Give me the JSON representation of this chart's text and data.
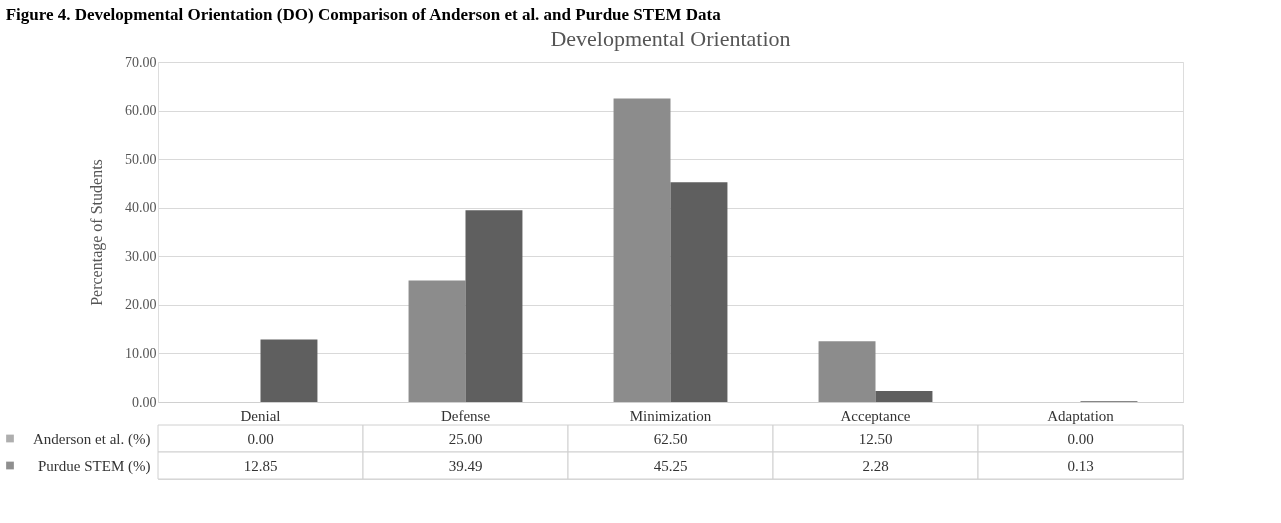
{
  "chart_data": {
    "type": "bar",
    "title": "Developmental Orientation",
    "ylabel": "Percentage of Students",
    "annotations": [
      "Figure 4. Developmental Orientation (DO) Comparison of Anderson et al. and Purdue STEM Data"
    ],
    "categories": [
      "Denial",
      "Defense",
      "Minimization",
      "Acceptance",
      "Adaptation"
    ],
    "series": [
      {
        "name": "Anderson et al. (%)",
        "color": "#8c8c8c",
        "values": [
          0.0,
          25.0,
          62.5,
          12.5,
          0.0
        ],
        "value_labels": [
          "0.00",
          "25.00",
          "62.50",
          "12.50",
          "0.00"
        ]
      },
      {
        "name": "Purdue STEM (%)",
        "color": "#5f5f5f",
        "values": [
          12.85,
          39.49,
          45.25,
          2.28,
          0.13
        ],
        "value_labels": [
          "12.85",
          "39.49",
          "45.25",
          "2.28",
          "0.13"
        ]
      }
    ],
    "ylim": [
      0,
      70
    ],
    "yticks": [
      {
        "value": 0,
        "label": "0.00"
      },
      {
        "value": 10,
        "label": "10.00"
      },
      {
        "value": 20,
        "label": "20.00"
      },
      {
        "value": 30,
        "label": "30.00"
      },
      {
        "value": 40,
        "label": "40.00"
      },
      {
        "value": 50,
        "label": "50.00"
      },
      {
        "value": 60,
        "label": "60.00"
      },
      {
        "value": 70,
        "label": "70.00"
      }
    ],
    "grid": "y",
    "legend": "bottom left"
  }
}
